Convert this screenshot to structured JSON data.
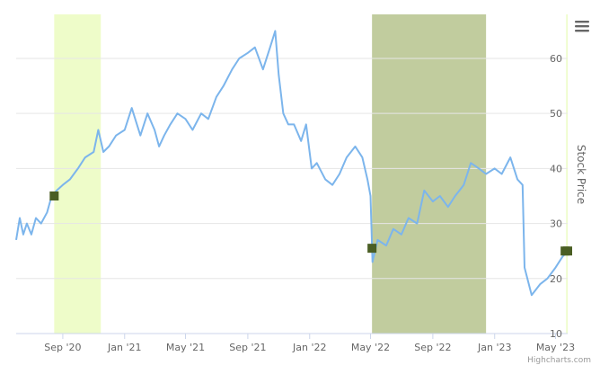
{
  "chart_data": {
    "type": "line",
    "title": "",
    "xlabel": "",
    "ylabel": "Stock Price",
    "x_range": [
      "2020-06-01",
      "2023-05-25"
    ],
    "ylim": [
      10,
      68
    ],
    "y_ticks": [
      10,
      20,
      30,
      40,
      50,
      60
    ],
    "x_ticks": [
      {
        "date": "2020-09-01",
        "label": "Sep '20"
      },
      {
        "date": "2021-01-01",
        "label": "Jan '21"
      },
      {
        "date": "2021-05-01",
        "label": "May '21"
      },
      {
        "date": "2021-09-01",
        "label": "Sep '21"
      },
      {
        "date": "2022-01-01",
        "label": "Jan '22"
      },
      {
        "date": "2022-05-01",
        "label": "May '22"
      },
      {
        "date": "2022-09-01",
        "label": "Sep '22"
      },
      {
        "date": "2023-01-01",
        "label": "Jan '23"
      },
      {
        "date": "2023-05-01",
        "label": "May '23"
      }
    ],
    "grid": true,
    "y_axis_side": "right",
    "bands": [
      {
        "from": "2020-08-15",
        "to": "2020-11-15",
        "color": "#eefcc9"
      },
      {
        "from": "2022-05-04",
        "to": "2022-12-15",
        "color": "#c1cc9e"
      },
      {
        "from": "2023-05-22",
        "to": "2023-05-25",
        "color": "#eefcc9"
      }
    ],
    "series": [
      {
        "color": "#7cb5ec",
        "points": [
          [
            "2020-06-01",
            27
          ],
          [
            "2020-06-08",
            31
          ],
          [
            "2020-06-15",
            28
          ],
          [
            "2020-06-22",
            30
          ],
          [
            "2020-07-01",
            28
          ],
          [
            "2020-07-10",
            31
          ],
          [
            "2020-07-20",
            30
          ],
          [
            "2020-08-01",
            32
          ],
          [
            "2020-08-10",
            35
          ],
          [
            "2020-08-20",
            36
          ],
          [
            "2020-09-01",
            37
          ],
          [
            "2020-09-15",
            38
          ],
          [
            "2020-10-01",
            40
          ],
          [
            "2020-10-15",
            42
          ],
          [
            "2020-11-01",
            43
          ],
          [
            "2020-11-10",
            47
          ],
          [
            "2020-11-20",
            43
          ],
          [
            "2020-12-01",
            44
          ],
          [
            "2020-12-15",
            46
          ],
          [
            "2021-01-01",
            47
          ],
          [
            "2021-01-15",
            51
          ],
          [
            "2021-02-01",
            46
          ],
          [
            "2021-02-15",
            50
          ],
          [
            "2021-03-01",
            47
          ],
          [
            "2021-03-10",
            44
          ],
          [
            "2021-03-20",
            46
          ],
          [
            "2021-04-01",
            48
          ],
          [
            "2021-04-15",
            50
          ],
          [
            "2021-05-01",
            49
          ],
          [
            "2021-05-15",
            47
          ],
          [
            "2021-06-01",
            50
          ],
          [
            "2021-06-15",
            49
          ],
          [
            "2021-07-01",
            53
          ],
          [
            "2021-07-15",
            55
          ],
          [
            "2021-08-01",
            58
          ],
          [
            "2021-08-15",
            60
          ],
          [
            "2021-09-01",
            61
          ],
          [
            "2021-09-15",
            62
          ],
          [
            "2021-10-01",
            58
          ],
          [
            "2021-10-15",
            62
          ],
          [
            "2021-10-25",
            65
          ],
          [
            "2021-11-01",
            57
          ],
          [
            "2021-11-10",
            50
          ],
          [
            "2021-11-20",
            48
          ],
          [
            "2021-12-01",
            48
          ],
          [
            "2021-12-15",
            45
          ],
          [
            "2021-12-25",
            48
          ],
          [
            "2022-01-05",
            40
          ],
          [
            "2022-01-15",
            41
          ],
          [
            "2022-02-01",
            38
          ],
          [
            "2022-02-15",
            37
          ],
          [
            "2022-03-01",
            39
          ],
          [
            "2022-03-15",
            42
          ],
          [
            "2022-04-01",
            44
          ],
          [
            "2022-04-15",
            42
          ],
          [
            "2022-04-25",
            38
          ],
          [
            "2022-05-01",
            35
          ],
          [
            "2022-05-05",
            23
          ],
          [
            "2022-05-15",
            27
          ],
          [
            "2022-06-01",
            26
          ],
          [
            "2022-06-15",
            29
          ],
          [
            "2022-07-01",
            28
          ],
          [
            "2022-07-15",
            31
          ],
          [
            "2022-08-01",
            30
          ],
          [
            "2022-08-15",
            36
          ],
          [
            "2022-09-01",
            34
          ],
          [
            "2022-09-15",
            35
          ],
          [
            "2022-10-01",
            33
          ],
          [
            "2022-10-15",
            35
          ],
          [
            "2022-11-01",
            37
          ],
          [
            "2022-11-15",
            41
          ],
          [
            "2022-12-01",
            40
          ],
          [
            "2022-12-15",
            39
          ],
          [
            "2023-01-01",
            40
          ],
          [
            "2023-01-15",
            39
          ],
          [
            "2023-02-01",
            42
          ],
          [
            "2023-02-15",
            38
          ],
          [
            "2023-02-25",
            37
          ],
          [
            "2023-03-01",
            22
          ],
          [
            "2023-03-15",
            17
          ],
          [
            "2023-04-01",
            19
          ],
          [
            "2023-04-15",
            20
          ],
          [
            "2023-05-01",
            22
          ],
          [
            "2023-05-15",
            24
          ],
          [
            "2023-05-25",
            25
          ]
        ]
      }
    ],
    "markers": [
      {
        "date": "2020-08-15",
        "value": 35,
        "color": "#4a5e23"
      },
      {
        "date": "2022-05-04",
        "value": 25.5,
        "color": "#4a5e23"
      },
      {
        "date": "2023-05-20",
        "value": 25,
        "color": "#4a5e23"
      },
      {
        "date": "2023-05-25",
        "value": 25,
        "color": "#4a5e23"
      }
    ]
  },
  "credits": "Highcharts.com",
  "menu": {
    "icon": "hamburger-menu-icon"
  }
}
